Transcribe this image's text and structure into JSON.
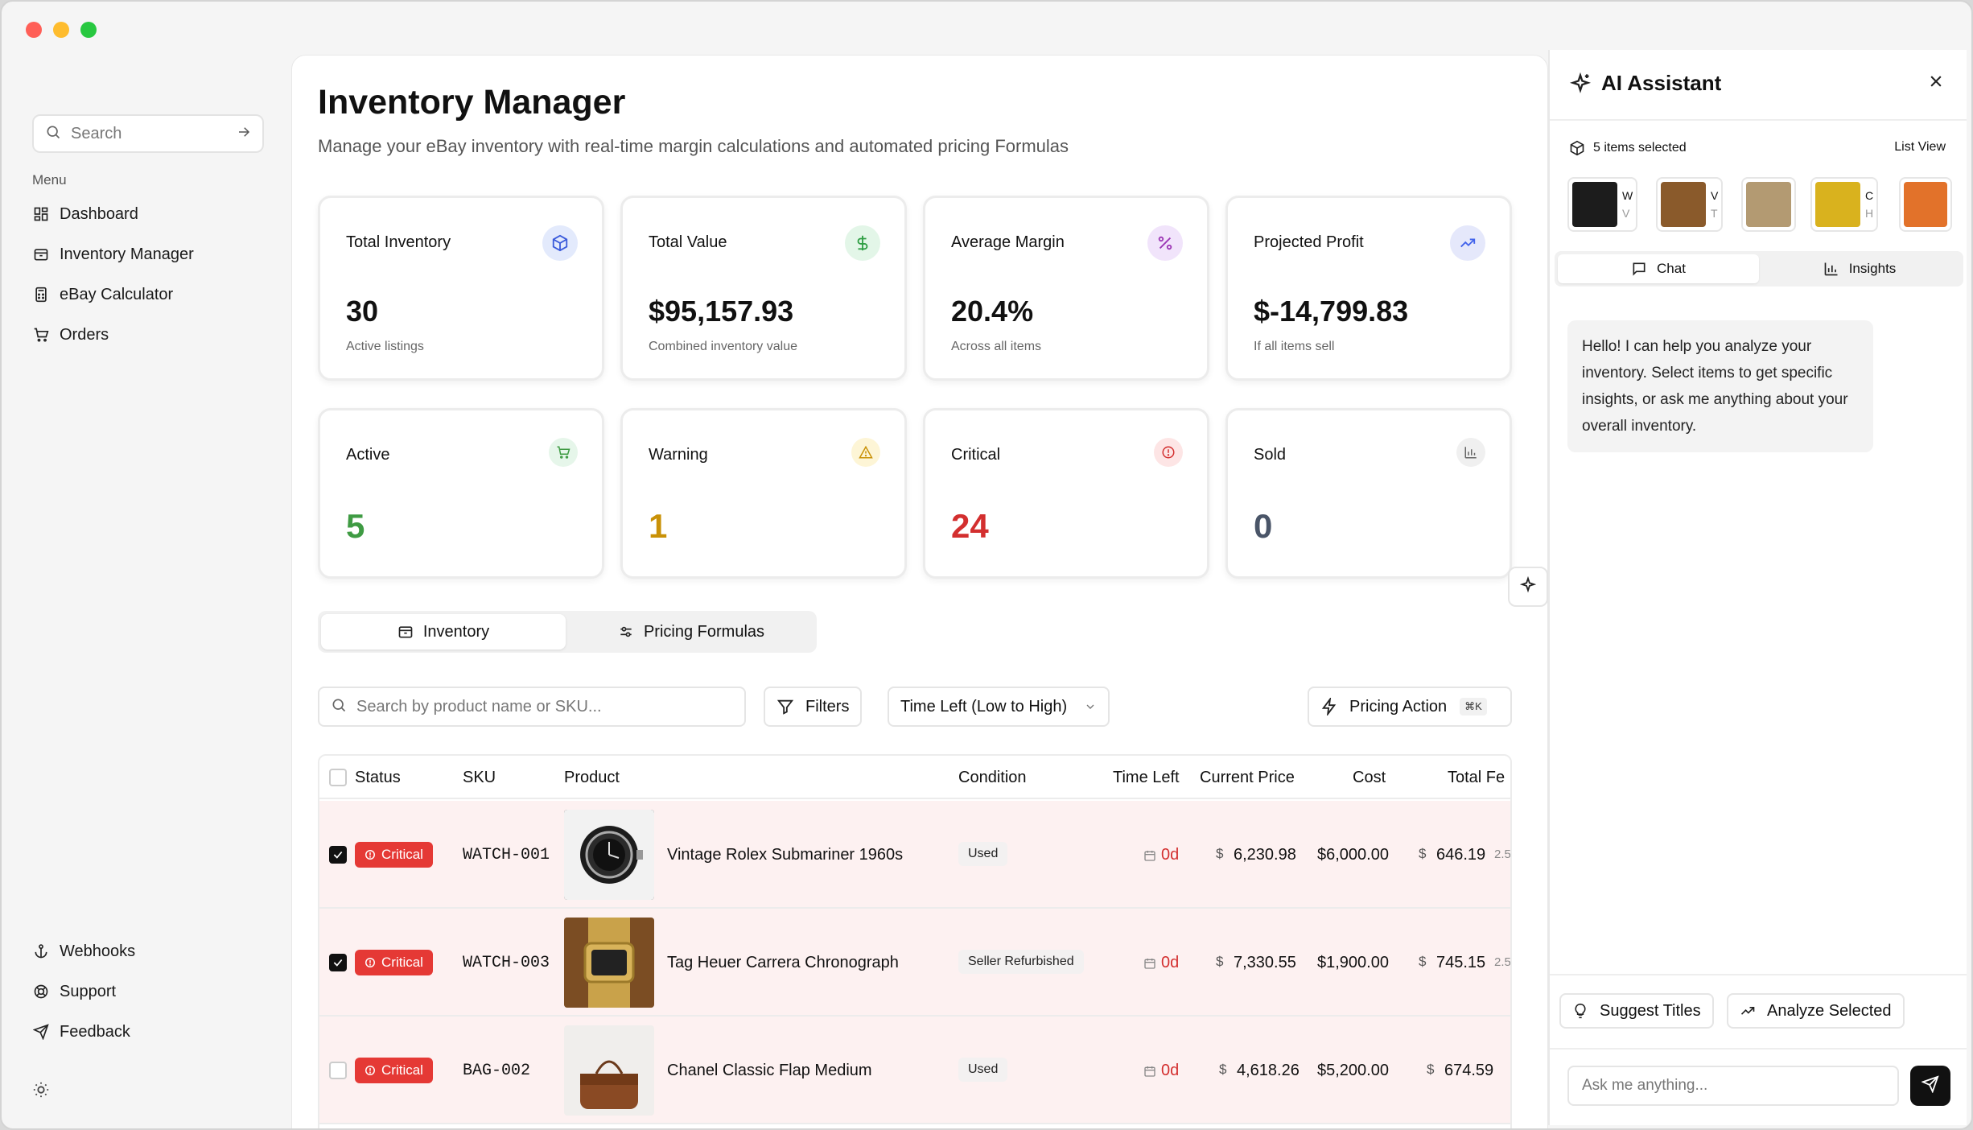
{
  "sidebar": {
    "search_placeholder": "Search",
    "menu_label": "Menu",
    "items": [
      {
        "label": "Dashboard",
        "icon": "dashboard-icon"
      },
      {
        "label": "Inventory Manager",
        "icon": "package-icon"
      },
      {
        "label": "eBay Calculator",
        "icon": "calculator-icon"
      },
      {
        "label": "Orders",
        "icon": "cart-icon"
      }
    ],
    "bottom_items": [
      {
        "label": "Webhooks",
        "icon": "anchor-icon"
      },
      {
        "label": "Support",
        "icon": "lifebuoy-icon"
      },
      {
        "label": "Feedback",
        "icon": "send-icon"
      }
    ]
  },
  "header": {
    "title": "Inventory Manager",
    "subtitle": "Manage your eBay inventory with real-time margin calculations and automated pricing Formulas"
  },
  "stats": [
    {
      "title": "Total Inventory",
      "value": "30",
      "sub": "Active listings",
      "icon": "box-icon",
      "color": "#3b5bdb",
      "bg": "#e3eafc"
    },
    {
      "title": "Total Value",
      "value": "$95,157.93",
      "sub": "Combined inventory value",
      "icon": "dollar-icon",
      "color": "#2f9e44",
      "bg": "#e3f6e8"
    },
    {
      "title": "Average Margin",
      "value": "20.4%",
      "sub": "Across all items",
      "icon": "percent-icon",
      "color": "#9c36b5",
      "bg": "#f1e4fb"
    },
    {
      "title": "Projected Profit",
      "value": "$-14,799.83",
      "sub": "If all items sell",
      "icon": "trending-up-icon",
      "color": "#4263eb",
      "bg": "#e5e8fb"
    }
  ],
  "status_cards": [
    {
      "title": "Active",
      "value": "5",
      "color": "#3f9b43",
      "icon": "cart-icon",
      "bg": "#e6f6ea"
    },
    {
      "title": "Warning",
      "value": "1",
      "color": "#c99107",
      "icon": "warning-icon",
      "bg": "#fdf5d6"
    },
    {
      "title": "Critical",
      "value": "24",
      "color": "#d32f2f",
      "icon": "alert-circle-icon",
      "bg": "#fde5e5"
    },
    {
      "title": "Sold",
      "value": "0",
      "color": "#4a5568",
      "icon": "bar-chart-icon",
      "bg": "#f0f0f0"
    }
  ],
  "tabs": {
    "inventory": "Inventory",
    "pricing": "Pricing Formulas"
  },
  "toolbar": {
    "search_placeholder": "Search by product name or SKU...",
    "filters": "Filters",
    "sort": "Time Left (Low to High)",
    "pricing_action": "Pricing Action",
    "shortcut": "⌘K"
  },
  "table": {
    "columns": [
      "Status",
      "SKU",
      "Product",
      "Condition",
      "Time Left",
      "Current Price",
      "Cost",
      "Total Fe"
    ],
    "rows": [
      {
        "checked": true,
        "status": "Critical",
        "sku": "WATCH-001",
        "product": "Vintage Rolex Submariner 1960s",
        "condition": "Used",
        "time_left": "0d",
        "price_sym": "$",
        "price": "6,230.98",
        "cost": "$6,000.00",
        "fee_sym": "$",
        "fee": "646.19",
        "fee_extra": "2.5"
      },
      {
        "checked": true,
        "status": "Critical",
        "sku": "WATCH-003",
        "product": "Tag Heuer Carrera Chronograph",
        "condition": "Seller Refurbished",
        "time_left": "0d",
        "price_sym": "$",
        "price": "7,330.55",
        "cost": "$1,900.00",
        "fee_sym": "$",
        "fee": "745.15",
        "fee_extra": "2.5"
      },
      {
        "checked": false,
        "status": "Critical",
        "sku": "BAG-002",
        "product": "Chanel Classic Flap Medium",
        "condition": "Used",
        "time_left": "0d",
        "price_sym": "$",
        "price": "4,618.26",
        "cost": "$5,200.00",
        "fee_sym": "$",
        "fee": "674.59",
        "fee_extra": ""
      }
    ]
  },
  "ai": {
    "title": "AI Assistant",
    "selected_count": "5 items selected",
    "list_view": "List View",
    "selected_items": [
      {
        "line1": "W",
        "line2": "V"
      },
      {
        "line1": "V",
        "line2": "T"
      },
      {
        "line1": "",
        "line2": ""
      },
      {
        "line1": "C",
        "line2": "H"
      },
      {
        "line1": "",
        "line2": ""
      }
    ],
    "tab_chat": "Chat",
    "tab_insights": "Insights",
    "message": "Hello! I can help you analyze your inventory. Select items to get specific insights, or ask me anything about your overall inventory.",
    "suggest_titles": "Suggest Titles",
    "analyze_selected": "Analyze Selected",
    "input_placeholder": "Ask me anything..."
  }
}
